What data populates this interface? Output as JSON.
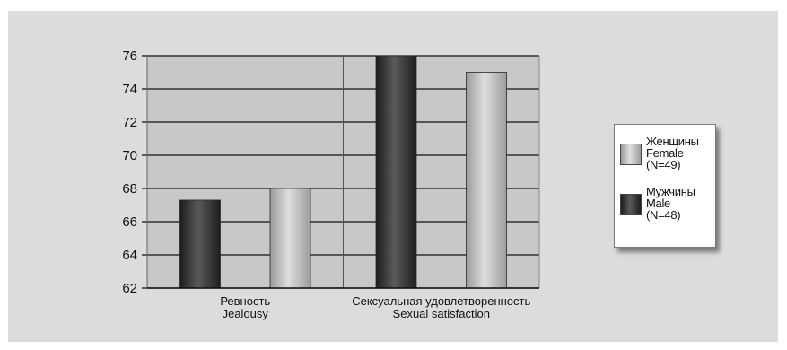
{
  "chart_data": {
    "type": "bar",
    "categories": [
      {
        "ru": "Ревность",
        "en": "Jealousy"
      },
      {
        "ru": "Сексуальная удовлетворенность",
        "en": "Sexual satisfaction"
      }
    ],
    "series": [
      {
        "key": "male",
        "label_ru": "Мужчины",
        "label_en": "Male",
        "n": "(N=48)",
        "color": "#3a3a3a",
        "values": [
          67.3,
          76.0
        ]
      },
      {
        "key": "female",
        "label_ru": "Женщины",
        "label_en": "Female",
        "n": "(N=49)",
        "color": "#c4c4c4",
        "values": [
          68.0,
          75.0
        ]
      }
    ],
    "ylim": [
      62,
      76
    ],
    "yticks": [
      "62",
      "64",
      "66",
      "68",
      "70",
      "72",
      "74",
      "76"
    ],
    "grid": true,
    "legend_position": "right"
  },
  "colors": {
    "frame": "#dcdcdc",
    "plot": "#c8c8c8",
    "male_bar": "#3a3a3a",
    "female_bar": "#c4c4c4"
  }
}
